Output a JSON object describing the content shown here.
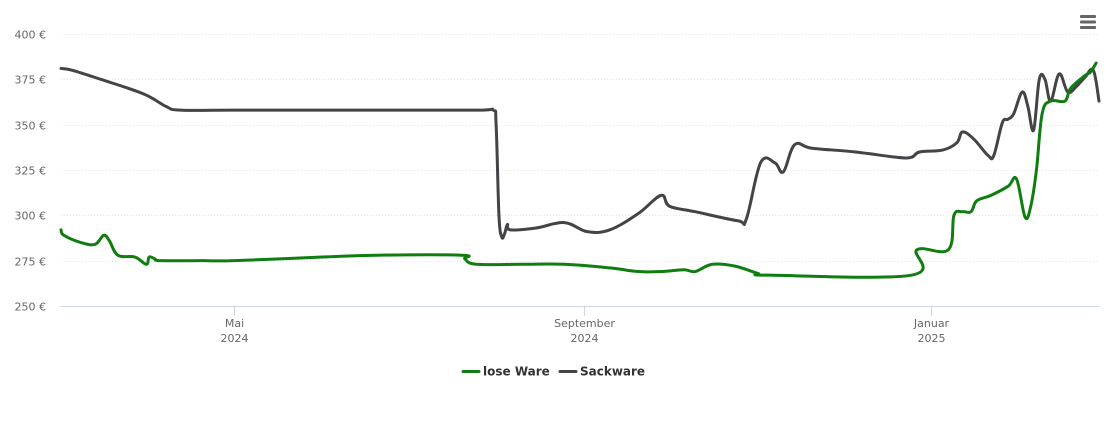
{
  "chart_data": {
    "type": "line",
    "y_unit": "€",
    "ylim": [
      250,
      400
    ],
    "xlim": [
      "2024-03-01",
      "2025-03-01"
    ],
    "grid": true,
    "legend_position": "bottom-center",
    "y_ticks": [
      {
        "value": 400,
        "label": "400 €"
      },
      {
        "value": 375,
        "label": "375 €"
      },
      {
        "value": 350,
        "label": "350 €"
      },
      {
        "value": 325,
        "label": "325 €"
      },
      {
        "value": 300,
        "label": "300 €"
      },
      {
        "value": 275,
        "label": "275 €"
      },
      {
        "value": 250,
        "label": "250 €"
      }
    ],
    "x_ticks": [
      {
        "date": "2024-05-01",
        "label": "Mai",
        "sublabel": "2024"
      },
      {
        "date": "2024-09-01",
        "label": "September",
        "sublabel": "2024"
      },
      {
        "date": "2025-01-01",
        "label": "Januar",
        "sublabel": "2025"
      }
    ],
    "series": [
      {
        "name": "lose Ware",
        "color": "#0f7d0f",
        "points": [
          [
            "2024-03-01",
            292
          ],
          [
            "2024-03-02",
            289
          ],
          [
            "2024-03-08",
            285
          ],
          [
            "2024-03-13",
            284
          ],
          [
            "2024-03-16",
            289
          ],
          [
            "2024-03-18",
            286
          ],
          [
            "2024-03-21",
            278
          ],
          [
            "2024-03-27",
            277
          ],
          [
            "2024-03-31",
            273
          ],
          [
            "2024-04-01",
            277
          ],
          [
            "2024-04-03",
            276
          ],
          [
            "2024-04-05",
            275
          ],
          [
            "2024-04-20",
            275
          ],
          [
            "2024-05-01",
            275
          ],
          [
            "2024-06-01",
            277
          ],
          [
            "2024-06-20",
            278
          ],
          [
            "2024-07-20",
            278
          ],
          [
            "2024-07-21",
            276
          ],
          [
            "2024-07-25",
            273
          ],
          [
            "2024-08-10",
            273
          ],
          [
            "2024-08-25",
            273
          ],
          [
            "2024-09-10",
            271
          ],
          [
            "2024-09-20",
            269
          ],
          [
            "2024-09-28",
            269
          ],
          [
            "2024-10-06",
            270
          ],
          [
            "2024-10-10",
            269
          ],
          [
            "2024-10-16",
            273
          ],
          [
            "2024-10-24",
            272
          ],
          [
            "2024-11-01",
            268
          ],
          [
            "2024-11-05",
            267
          ],
          [
            "2024-12-25",
            267
          ],
          [
            "2024-12-27",
            281
          ],
          [
            "2025-01-07",
            281
          ],
          [
            "2025-01-09",
            300
          ],
          [
            "2025-01-12",
            302
          ],
          [
            "2025-01-15",
            302
          ],
          [
            "2025-01-17",
            308
          ],
          [
            "2025-01-22",
            311
          ],
          [
            "2025-01-28",
            316
          ],
          [
            "2025-01-31",
            320
          ],
          [
            "2025-02-03",
            299
          ],
          [
            "2025-02-05",
            305
          ],
          [
            "2025-02-07",
            325
          ],
          [
            "2025-02-09",
            356
          ],
          [
            "2025-02-12",
            363
          ],
          [
            "2025-02-17",
            363
          ],
          [
            "2025-02-19",
            370
          ],
          [
            "2025-02-24",
            377
          ],
          [
            "2025-02-26",
            379
          ],
          [
            "2025-02-28",
            384
          ]
        ]
      },
      {
        "name": "Sackware",
        "color": "#434348",
        "points": [
          [
            "2024-03-01",
            381
          ],
          [
            "2024-03-05",
            380
          ],
          [
            "2024-03-15",
            375
          ],
          [
            "2024-03-30",
            367
          ],
          [
            "2024-04-07",
            360
          ],
          [
            "2024-04-12",
            358
          ],
          [
            "2024-05-01",
            358
          ],
          [
            "2024-06-15",
            358
          ],
          [
            "2024-07-25",
            358
          ],
          [
            "2024-07-31",
            358
          ],
          [
            "2024-08-01",
            350
          ],
          [
            "2024-08-02",
            300
          ],
          [
            "2024-08-03",
            288
          ],
          [
            "2024-08-04",
            290
          ],
          [
            "2024-08-05",
            295
          ],
          [
            "2024-08-06",
            292
          ],
          [
            "2024-08-15",
            293
          ],
          [
            "2024-08-25",
            296
          ],
          [
            "2024-09-02",
            291
          ],
          [
            "2024-09-10",
            292
          ],
          [
            "2024-09-20",
            301
          ],
          [
            "2024-09-28",
            311
          ],
          [
            "2024-10-01",
            305
          ],
          [
            "2024-10-10",
            302
          ],
          [
            "2024-10-25",
            297
          ],
          [
            "2024-10-28",
            298
          ],
          [
            "2024-11-02",
            329
          ],
          [
            "2024-11-07",
            329
          ],
          [
            "2024-11-10",
            324
          ],
          [
            "2024-11-14",
            339
          ],
          [
            "2024-11-20",
            337
          ],
          [
            "2024-12-05",
            335
          ],
          [
            "2024-12-20",
            332
          ],
          [
            "2024-12-25",
            332
          ],
          [
            "2024-12-28",
            335
          ],
          [
            "2025-01-05",
            336
          ],
          [
            "2025-01-10",
            340
          ],
          [
            "2025-01-12",
            346
          ],
          [
            "2025-01-16",
            342
          ],
          [
            "2025-01-21",
            333
          ],
          [
            "2025-01-23",
            333
          ],
          [
            "2025-01-26",
            351
          ],
          [
            "2025-01-28",
            353
          ],
          [
            "2025-01-30",
            356
          ],
          [
            "2025-02-02",
            368
          ],
          [
            "2025-02-04",
            360
          ],
          [
            "2025-02-06",
            347
          ],
          [
            "2025-02-08",
            375
          ],
          [
            "2025-02-10",
            375
          ],
          [
            "2025-02-12",
            363
          ],
          [
            "2025-02-15",
            378
          ],
          [
            "2025-02-18",
            368
          ],
          [
            "2025-02-21",
            371
          ],
          [
            "2025-02-24",
            376
          ],
          [
            "2025-02-27",
            380
          ],
          [
            "2025-03-01",
            363
          ]
        ]
      }
    ]
  },
  "menu": {
    "icon": "hamburger-menu-icon"
  }
}
